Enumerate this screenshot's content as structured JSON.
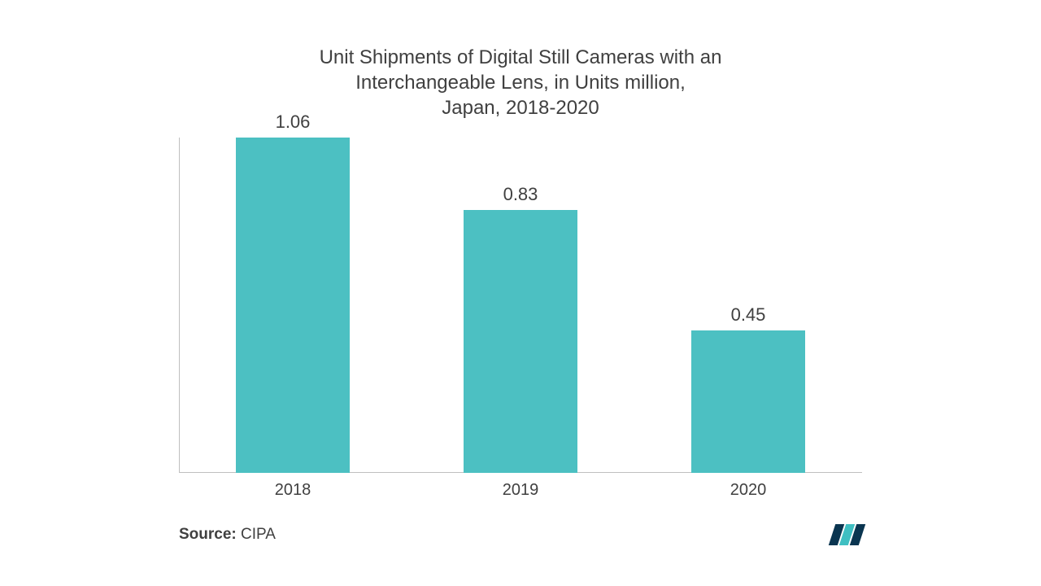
{
  "chart": {
    "type": "bar",
    "title_lines": [
      "Unit Shipments of Digital Still Cameras with an",
      "Interchangeable Lens, in Units million,",
      "Japan, 2018-2020"
    ],
    "title_fontsize": 24,
    "title_color": "#404040",
    "categories": [
      "2018",
      "2019",
      "2020"
    ],
    "values": [
      1.06,
      0.83,
      0.45
    ],
    "value_labels": [
      "1.06",
      "0.83",
      "0.45"
    ],
    "ymax": 1.06,
    "bar_color": "#4cc0c2",
    "bar_width_pct": 50,
    "value_label_fontsize": 22,
    "value_label_color": "#404040",
    "category_label_fontsize": 20,
    "category_label_color": "#404040",
    "axis_color": "#bfbfbf",
    "background_color": "#ffffff"
  },
  "footer": {
    "source_label": "Source:",
    "source_value": "CIPA",
    "source_fontsize": 19,
    "source_color": "#404040",
    "logo_colors": [
      "#0a3550",
      "#3fbfc2",
      "#0a3550"
    ]
  }
}
